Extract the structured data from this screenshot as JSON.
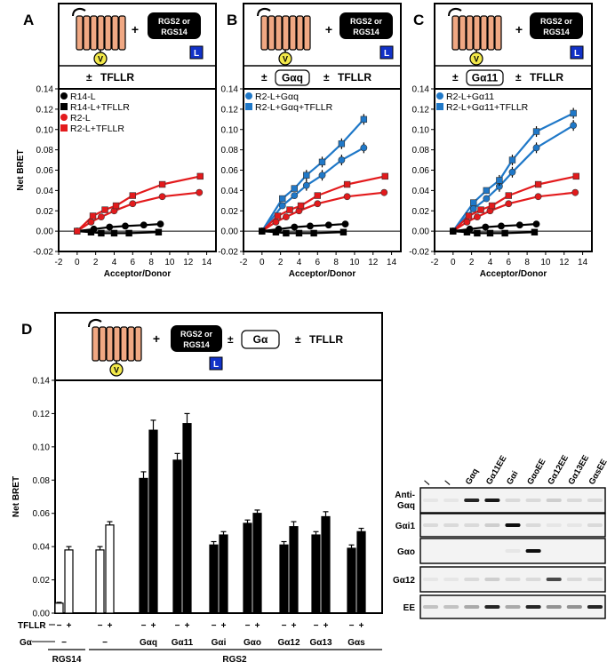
{
  "panels": {
    "A": {
      "label": "A",
      "header": {
        "pm": "±",
        "tfllr": "TFLLR",
        "g_alpha": ""
      },
      "schematic": {
        "plus": "+",
        "rgs_line1": "RGS2 or",
        "rgs_line2": "RGS14",
        "luc": "L",
        "venus": "V"
      }
    },
    "B": {
      "label": "B",
      "header": {
        "pm": "±",
        "tfllr": "TFLLR",
        "g_alpha": "Gαq"
      },
      "schematic": {
        "plus": "+",
        "rgs_line1": "RGS2 or",
        "rgs_line2": "RGS14",
        "luc": "L",
        "venus": "V"
      }
    },
    "C": {
      "label": "C",
      "header": {
        "pm": "±",
        "tfllr": "TFLLR",
        "g_alpha": "Gα11"
      },
      "schematic": {
        "plus": "+",
        "rgs_line1": "RGS2 or",
        "rgs_line2": "RGS14",
        "luc": "L",
        "venus": "V"
      }
    },
    "D": {
      "label": "D",
      "header": {
        "pm": "±",
        "tfllr": "TFLLR",
        "g_alpha": "Gα"
      },
      "schematic": {
        "plus": "+",
        "rgs_line1": "RGS2 or",
        "rgs_line2": "RGS14",
        "luc": "L",
        "venus": "V"
      }
    }
  },
  "chart_data": [
    {
      "id": "A",
      "type": "scatter",
      "xlabel": "Acceptor/Donor",
      "ylabel": "Net BRET",
      "xlim": [
        -2,
        15
      ],
      "ylim": [
        -0.02,
        0.14
      ],
      "xticks": [
        -2,
        0,
        2,
        4,
        6,
        8,
        10,
        12,
        14
      ],
      "yticks": [
        -0.02,
        0.0,
        0.02,
        0.04,
        0.06,
        0.08,
        0.1,
        0.12,
        0.14
      ],
      "ytick_labels": [
        "-0.02",
        "0.00",
        "0.02",
        "0.04",
        "0.06",
        "0.08",
        "0.10",
        "0.12",
        "0.14"
      ],
      "series": [
        {
          "name": "R14-L",
          "color": "#000000",
          "marker": "circle",
          "x": [
            0,
            1.8,
            3.5,
            5.2,
            7.2,
            9.0
          ],
          "y": [
            0.0,
            0.002,
            0.004,
            0.005,
            0.006,
            0.007
          ]
        },
        {
          "name": "R14-L+TFLLR",
          "color": "#000000",
          "marker": "square",
          "x": [
            0,
            1.5,
            2.6,
            4.0,
            5.6,
            8.8
          ],
          "y": [
            0.0,
            -0.001,
            -0.002,
            -0.002,
            -0.002,
            -0.001
          ]
        },
        {
          "name": "R2-L",
          "color": "#e31a1c",
          "marker": "circle",
          "x": [
            0,
            1.5,
            2.6,
            4.0,
            6.0,
            9.2,
            13.2
          ],
          "y": [
            0.0,
            0.009,
            0.014,
            0.02,
            0.027,
            0.034,
            0.038
          ]
        },
        {
          "name": "R2-L+TFLLR",
          "color": "#e31a1c",
          "marker": "square",
          "x": [
            0,
            1.7,
            3.0,
            4.2,
            6.0,
            9.2,
            13.3
          ],
          "y": [
            0.0,
            0.015,
            0.021,
            0.025,
            0.035,
            0.046,
            0.054
          ]
        }
      ]
    },
    {
      "id": "B",
      "type": "scatter",
      "xlabel": "Acceptor/Donor",
      "ylabel": "",
      "xlim": [
        -2,
        15
      ],
      "ylim": [
        -0.02,
        0.14
      ],
      "xticks": [
        -2,
        0,
        2,
        4,
        6,
        8,
        10,
        12,
        14
      ],
      "yticks": [
        -0.02,
        0.0,
        0.02,
        0.04,
        0.06,
        0.08,
        0.1,
        0.12,
        0.14
      ],
      "ytick_labels": [
        "-0.02",
        "0.00",
        "0.02",
        "0.04",
        "0.06",
        "0.08",
        "0.10",
        "0.12",
        "0.14"
      ],
      "series": [
        {
          "name": "R2-L+Gαq",
          "color": "#1f78c8",
          "marker": "circle",
          "x": [
            0,
            2.2,
            3.5,
            4.8,
            6.5,
            8.6,
            11.0
          ],
          "y": [
            0.0,
            0.025,
            0.035,
            0.045,
            0.055,
            0.07,
            0.082
          ]
        },
        {
          "name": "R2-L+Gαq+TFLLR",
          "color": "#1f78c8",
          "marker": "square",
          "x": [
            0,
            2.2,
            3.5,
            4.8,
            6.5,
            8.6,
            11.0
          ],
          "y": [
            0.0,
            0.032,
            0.042,
            0.055,
            0.068,
            0.086,
            0.11
          ]
        },
        {
          "name": "R2-L",
          "color": "#e31a1c",
          "marker": "circle",
          "x": [
            0,
            1.5,
            2.6,
            4.0,
            6.0,
            9.2,
            13.2
          ],
          "y": [
            0.0,
            0.009,
            0.014,
            0.02,
            0.027,
            0.034,
            0.038
          ]
        },
        {
          "name": "R2-L+TFLLR",
          "color": "#e31a1c",
          "marker": "square",
          "x": [
            0,
            1.7,
            3.0,
            4.2,
            6.0,
            9.2,
            13.3
          ],
          "y": [
            0.0,
            0.015,
            0.021,
            0.025,
            0.035,
            0.046,
            0.054
          ]
        },
        {
          "name": "R14-L",
          "color": "#000000",
          "marker": "circle",
          "x": [
            0,
            1.8,
            3.5,
            5.2,
            7.2,
            9.0
          ],
          "y": [
            0.0,
            0.002,
            0.004,
            0.005,
            0.006,
            0.007
          ]
        },
        {
          "name": "R14-L+TFLLR",
          "color": "#000000",
          "marker": "square",
          "x": [
            0,
            1.5,
            2.6,
            4.0,
            5.6,
            8.8
          ],
          "y": [
            0.0,
            -0.001,
            -0.002,
            -0.002,
            -0.002,
            -0.001
          ]
        }
      ],
      "legend_count": 2
    },
    {
      "id": "C",
      "type": "scatter",
      "xlabel": "Acceptor/Donor",
      "ylabel": "",
      "xlim": [
        -2,
        15
      ],
      "ylim": [
        -0.02,
        0.14
      ],
      "xticks": [
        -2,
        0,
        2,
        4,
        6,
        8,
        10,
        12,
        14
      ],
      "yticks": [
        -0.02,
        0.0,
        0.02,
        0.04,
        0.06,
        0.08,
        0.1,
        0.12,
        0.14
      ],
      "ytick_labels": [
        "-0.02",
        "0.00",
        "0.02",
        "0.04",
        "0.06",
        "0.08",
        "0.10",
        "0.12",
        "0.14"
      ],
      "series": [
        {
          "name": "R2-L+Gα11",
          "color": "#1f78c8",
          "marker": "circle",
          "x": [
            0,
            2.2,
            3.6,
            5.0,
            6.4,
            9.0,
            13.0
          ],
          "y": [
            0.0,
            0.022,
            0.032,
            0.044,
            0.058,
            0.082,
            0.104
          ]
        },
        {
          "name": "R2-L+Gα11+TFLLR",
          "color": "#1f78c8",
          "marker": "square",
          "x": [
            0,
            2.2,
            3.6,
            5.0,
            6.4,
            9.0,
            13.0
          ],
          "y": [
            0.0,
            0.028,
            0.04,
            0.05,
            0.07,
            0.098,
            0.116
          ]
        },
        {
          "name": "R2-L",
          "color": "#e31a1c",
          "marker": "circle",
          "x": [
            0,
            1.5,
            2.6,
            4.0,
            6.0,
            9.2,
            13.2
          ],
          "y": [
            0.0,
            0.009,
            0.014,
            0.02,
            0.027,
            0.034,
            0.038
          ]
        },
        {
          "name": "R2-L+TFLLR",
          "color": "#e31a1c",
          "marker": "square",
          "x": [
            0,
            1.7,
            3.0,
            4.2,
            6.0,
            9.2,
            13.3
          ],
          "y": [
            0.0,
            0.015,
            0.021,
            0.025,
            0.035,
            0.046,
            0.054
          ]
        },
        {
          "name": "R14-L",
          "color": "#000000",
          "marker": "circle",
          "x": [
            0,
            1.8,
            3.5,
            5.2,
            7.2,
            9.0
          ],
          "y": [
            0.0,
            0.002,
            0.004,
            0.005,
            0.006,
            0.007
          ]
        },
        {
          "name": "R14-L+TFLLR",
          "color": "#000000",
          "marker": "square",
          "x": [
            0,
            1.5,
            2.6,
            4.0,
            5.6,
            8.8
          ],
          "y": [
            0.0,
            -0.001,
            -0.002,
            -0.002,
            -0.002,
            -0.001
          ]
        }
      ],
      "legend_count": 2
    },
    {
      "id": "D",
      "type": "bar",
      "ylabel": "Net BRET",
      "ylim": [
        0,
        0.14
      ],
      "yticks": [
        0.0,
        0.02,
        0.04,
        0.06,
        0.08,
        0.1,
        0.12,
        0.14
      ],
      "ytick_labels": [
        "0.00",
        "0.02",
        "0.04",
        "0.06",
        "0.08",
        "0.10",
        "0.12",
        "0.14"
      ],
      "row_labels": {
        "tfllr": "TFLLR",
        "galpha": "Gα"
      },
      "tfllr_signs": [
        "−",
        "+"
      ],
      "groups": [
        {
          "galpha": "−",
          "fill": "#ffffff",
          "values": [
            0.006,
            0.038
          ],
          "errors": [
            0.0005,
            0.002
          ]
        },
        {
          "galpha": "−",
          "fill": "#ffffff",
          "values": [
            0.038,
            0.053
          ],
          "errors": [
            0.002,
            0.002
          ]
        },
        {
          "galpha": "Gαq",
          "fill": "#000000",
          "values": [
            0.081,
            0.11
          ],
          "errors": [
            0.004,
            0.006
          ]
        },
        {
          "galpha": "Gα11",
          "fill": "#000000",
          "values": [
            0.092,
            0.114
          ],
          "errors": [
            0.004,
            0.006
          ]
        },
        {
          "galpha": "Gαi",
          "fill": "#000000",
          "values": [
            0.041,
            0.047
          ],
          "errors": [
            0.002,
            0.002
          ]
        },
        {
          "galpha": "Gαo",
          "fill": "#000000",
          "values": [
            0.054,
            0.06
          ],
          "errors": [
            0.002,
            0.002
          ]
        },
        {
          "galpha": "Gα12",
          "fill": "#000000",
          "values": [
            0.041,
            0.052
          ],
          "errors": [
            0.002,
            0.003
          ]
        },
        {
          "galpha": "Gα13",
          "fill": "#000000",
          "values": [
            0.047,
            0.058
          ],
          "errors": [
            0.002,
            0.003
          ]
        },
        {
          "galpha": "Gαs",
          "fill": "#000000",
          "values": [
            0.039,
            0.049
          ],
          "errors": [
            0.002,
            0.002
          ]
        }
      ],
      "rgs_labels": [
        {
          "text": "RGS14",
          "from": 0,
          "to": 0
        },
        {
          "text": "RGS2",
          "from": 1,
          "to": 8
        }
      ]
    }
  ],
  "blot": {
    "lanes": [
      "/",
      "/",
      "Gαq",
      "Gα11EE",
      "Gαi",
      "GαoEE",
      "Gα12EE",
      "Gα13EE",
      "GαsEE"
    ],
    "rows": [
      {
        "label1": "Anti-",
        "label2": "Gαq",
        "bands": [
          0.05,
          0.05,
          0.85,
          0.9,
          0.1,
          0.1,
          0.15,
          0.1,
          0.1
        ]
      },
      {
        "label1": "Gαi1",
        "label2": "",
        "bands": [
          0.1,
          0.1,
          0.1,
          0.15,
          0.95,
          0.1,
          0.05,
          0.05,
          0.1
        ]
      },
      {
        "label1": "Gαo",
        "label2": "",
        "bands": [
          0.0,
          0.0,
          0.0,
          0.0,
          0.05,
          0.95,
          0.0,
          0.0,
          0.0
        ]
      },
      {
        "label1": "Gα12",
        "label2": "",
        "bands": [
          0.05,
          0.05,
          0.1,
          0.15,
          0.1,
          0.1,
          0.7,
          0.1,
          0.1
        ]
      },
      {
        "label1": "EE",
        "label2": "",
        "bands": [
          0.2,
          0.2,
          0.3,
          0.85,
          0.3,
          0.85,
          0.4,
          0.4,
          0.85
        ]
      }
    ]
  }
}
